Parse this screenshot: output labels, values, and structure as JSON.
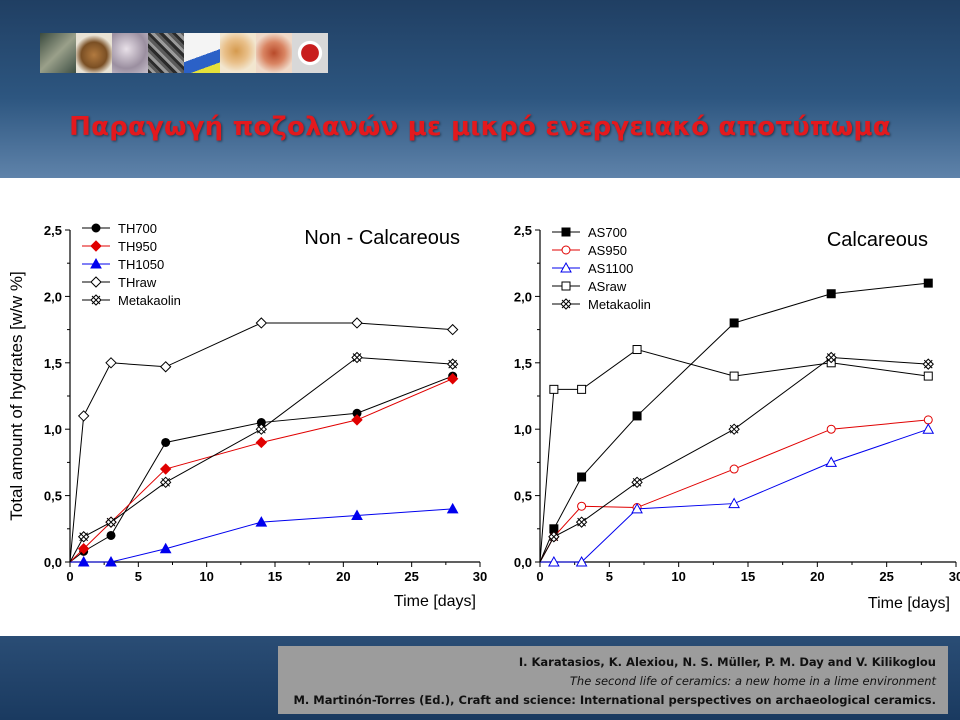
{
  "slide": {
    "title": "Παραγωγή ποζολανών με μικρό ενεργειακό αποτύπωμα",
    "image_strip": [
      "ceramic-fragment-photo",
      "clay-vessel-photo",
      "microscopy-image",
      "sem-micrograph",
      "diagram-image",
      "pottery-photo",
      "ceramic-pieces-photo",
      "red-seal-logo"
    ],
    "citation": {
      "line1": "I. Karatasios, K. Alexiou, N. S. Müller, P. M. Day and V. Kilikoglou",
      "line2": "The second life of ceramics: a new home in a lime environment",
      "line3": "M. Martinón-Torres (Ed.), Craft and science: International perspectives on archaeological ceramics."
    },
    "colors": {
      "title": "#e3191d",
      "background": "#21466f",
      "citation_box": "#9c9c9c"
    }
  },
  "chart_data": [
    {
      "type": "line",
      "title": "Non - Calcareous",
      "xlabel": "Time [days]",
      "ylabel": "Total amount of hydrates [w/w %]",
      "xlim": [
        0,
        30
      ],
      "ylim": [
        0,
        2.5
      ],
      "xticks": [
        "0",
        "5",
        "10",
        "15",
        "20",
        "25",
        "30"
      ],
      "yticks": [
        "0,0",
        "0,5",
        "1,0",
        "1,5",
        "2,0",
        "2,5"
      ],
      "legend_position": "top-left",
      "grid": false,
      "series": [
        {
          "name": "TH700",
          "color": "#000000",
          "marker": "circle",
          "filled": true,
          "points": [
            [
              0,
              0
            ],
            [
              1,
              0.08
            ],
            [
              3,
              0.2
            ],
            [
              7,
              0.9
            ],
            [
              14,
              1.05
            ],
            [
              21,
              1.12
            ],
            [
              28,
              1.4
            ]
          ]
        },
        {
          "name": "TH950",
          "color": "#e00000",
          "marker": "diamond",
          "filled": true,
          "points": [
            [
              0,
              0
            ],
            [
              1,
              0.1
            ],
            [
              3,
              0.3
            ],
            [
              7,
              0.7
            ],
            [
              14,
              0.9
            ],
            [
              21,
              1.07
            ],
            [
              28,
              1.38
            ]
          ]
        },
        {
          "name": "TH1050",
          "color": "#0000ee",
          "marker": "triangle",
          "filled": true,
          "points": [
            [
              0,
              0
            ],
            [
              1,
              0
            ],
            [
              3,
              0
            ],
            [
              7,
              0.1
            ],
            [
              14,
              0.3
            ],
            [
              21,
              0.35
            ],
            [
              28,
              0.4
            ]
          ]
        },
        {
          "name": "THraw",
          "color": "#000000",
          "marker": "diamond",
          "filled": false,
          "points": [
            [
              0,
              0
            ],
            [
              1,
              1.1
            ],
            [
              3,
              1.5
            ],
            [
              7,
              1.47
            ],
            [
              14,
              1.8
            ],
            [
              21,
              1.8
            ],
            [
              28,
              1.75
            ]
          ]
        },
        {
          "name": "Metakaolin",
          "color": "#000000",
          "marker": "xsquare",
          "filled": false,
          "points": [
            [
              0,
              0
            ],
            [
              1,
              0.19
            ],
            [
              3,
              0.3
            ],
            [
              7,
              0.6
            ],
            [
              14,
              1.0
            ],
            [
              21,
              1.54
            ],
            [
              28,
              1.49
            ]
          ]
        }
      ]
    },
    {
      "type": "line",
      "title": "Calcareous",
      "xlabel": "Time [days]",
      "ylabel": "",
      "xlim": [
        0,
        30
      ],
      "ylim": [
        0,
        2.5
      ],
      "xticks": [
        "0",
        "5",
        "10",
        "15",
        "20",
        "25",
        "30"
      ],
      "yticks": [
        "0,0",
        "0,5",
        "1,0",
        "1,5",
        "2,0",
        "2,5"
      ],
      "legend_position": "top-left",
      "grid": false,
      "series": [
        {
          "name": "AS700",
          "color": "#000000",
          "marker": "square",
          "filled": true,
          "points": [
            [
              0,
              0
            ],
            [
              1,
              0.25
            ],
            [
              3,
              0.64
            ],
            [
              7,
              1.1
            ],
            [
              14,
              1.8
            ],
            [
              21,
              2.02
            ],
            [
              28,
              2.1
            ]
          ]
        },
        {
          "name": "AS950",
          "color": "#e00000",
          "marker": "circle",
          "filled": false,
          "points": [
            [
              0,
              0
            ],
            [
              1,
              0.19
            ],
            [
              3,
              0.42
            ],
            [
              7,
              0.41
            ],
            [
              14,
              0.7
            ],
            [
              21,
              1.0
            ],
            [
              28,
              1.07
            ]
          ]
        },
        {
          "name": "AS1100",
          "color": "#0000ee",
          "marker": "triangle",
          "filled": false,
          "points": [
            [
              0,
              0
            ],
            [
              1,
              0
            ],
            [
              3,
              0
            ],
            [
              7,
              0.4
            ],
            [
              14,
              0.44
            ],
            [
              21,
              0.75
            ],
            [
              28,
              1.0
            ]
          ]
        },
        {
          "name": "ASraw",
          "color": "#000000",
          "marker": "square",
          "filled": false,
          "points": [
            [
              0,
              0
            ],
            [
              1,
              1.3
            ],
            [
              3,
              1.3
            ],
            [
              7,
              1.6
            ],
            [
              14,
              1.4
            ],
            [
              21,
              1.5
            ],
            [
              28,
              1.4
            ]
          ]
        },
        {
          "name": "Metakaolin",
          "color": "#000000",
          "marker": "xsquare",
          "filled": false,
          "points": [
            [
              0,
              0
            ],
            [
              1,
              0.19
            ],
            [
              3,
              0.3
            ],
            [
              7,
              0.6
            ],
            [
              14,
              1.0
            ],
            [
              21,
              1.54
            ],
            [
              28,
              1.49
            ]
          ]
        }
      ]
    }
  ]
}
